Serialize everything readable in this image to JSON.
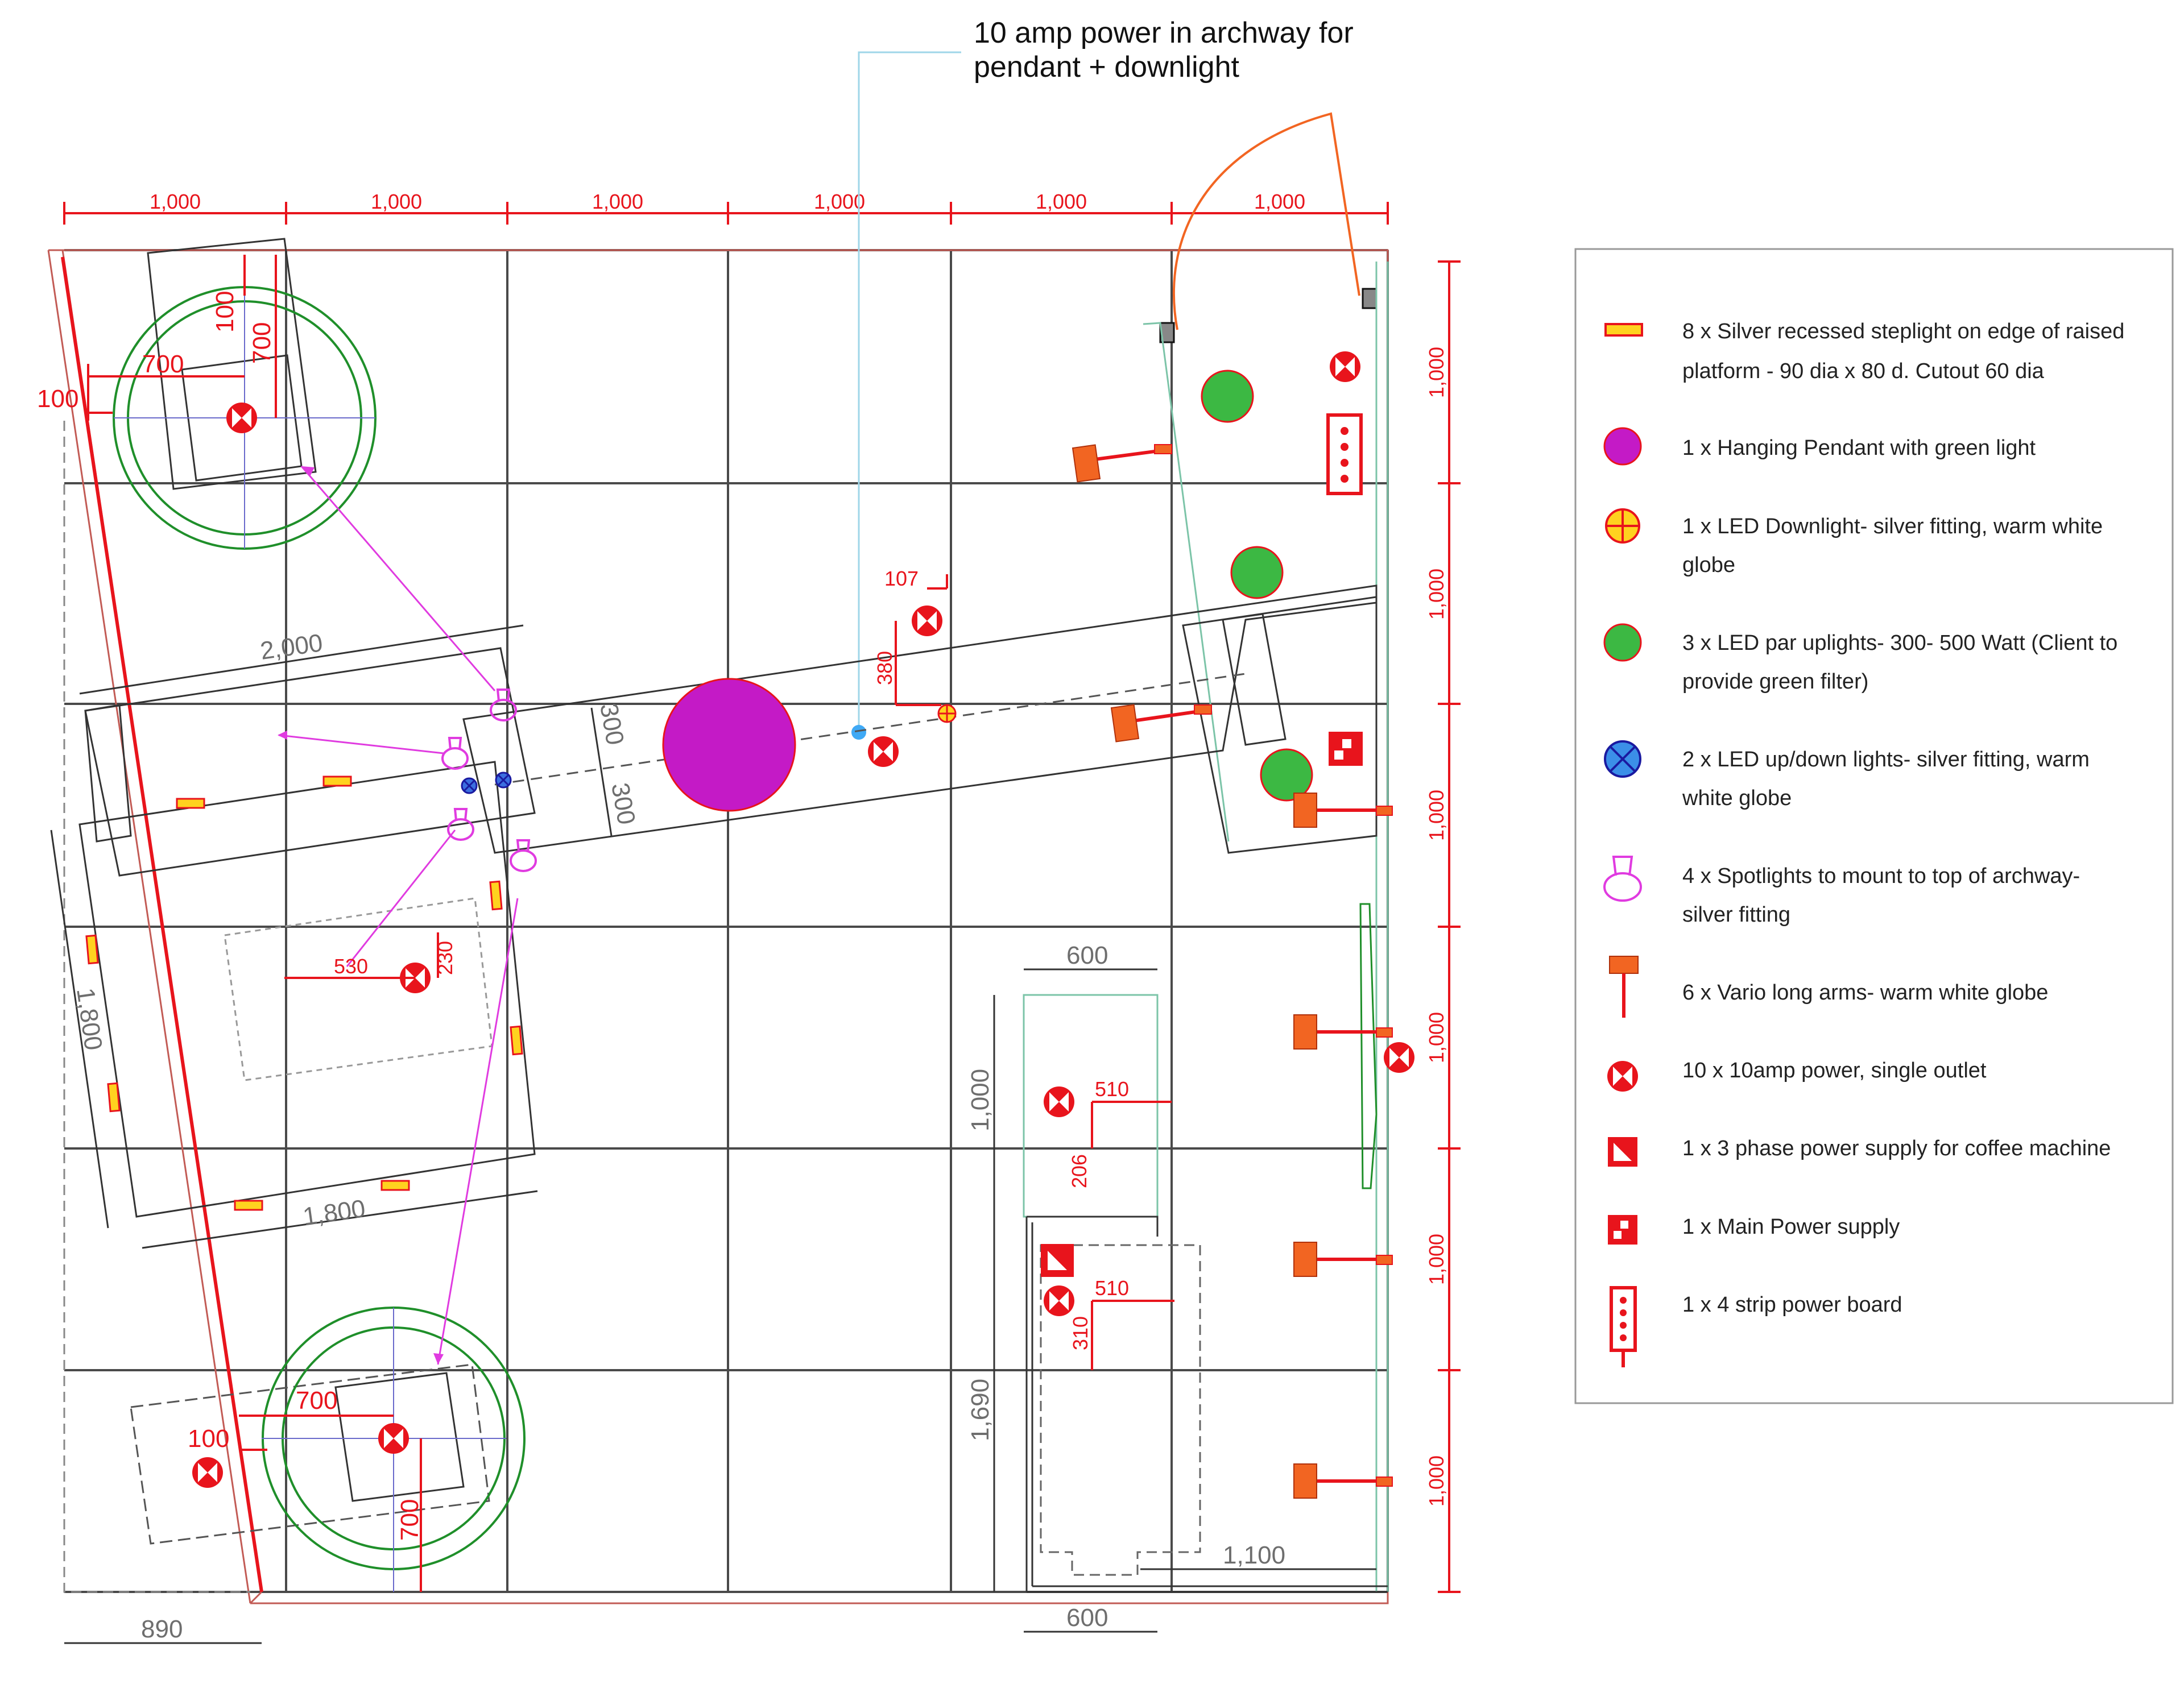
{
  "note": {
    "line1": "10 amp power in archway for",
    "line2": "pendant + downlight"
  },
  "dimensions": {
    "top": [
      "1,000",
      "1,000",
      "1,000",
      "1,000",
      "1,000",
      "1,000"
    ],
    "right": [
      "1,000",
      "1,000",
      "1,000",
      "1,000",
      "1,000",
      "1,000"
    ],
    "plinth_top": {
      "offset": "100",
      "width": "700",
      "side": "100",
      "depth": "700"
    },
    "plinth_bottom": {
      "width": "700",
      "side": "100",
      "depth": "700"
    },
    "platform_length": "2,000",
    "platform_width": "1,800",
    "platform_length_bottom": "1,800",
    "arch_width_a": "300",
    "arch_width_b": "300",
    "power_107": "107",
    "power_380": "380",
    "power_530": "530",
    "power_230": "230",
    "bench_top": "600",
    "bench_depth": "1,000",
    "bench_510_a": "510",
    "bench_206": "206",
    "bench_510_b": "510",
    "bench_310": "310",
    "bench_1690": "1,690",
    "bench_1100": "1,100",
    "bench_bottom": "600",
    "bottom_left": "890"
  },
  "legend": [
    {
      "icon": "steplight-icon",
      "line1": "8 x Silver recessed steplight on edge of raised",
      "line2": "platform - 90 dia x 80 d. Cutout 60 dia"
    },
    {
      "icon": "pendant-icon",
      "line1": "1 x Hanging Pendant with green light",
      "line2": ""
    },
    {
      "icon": "downlight-icon",
      "line1": "1 x LED Downlight- silver fitting, warm white",
      "line2": "globe"
    },
    {
      "icon": "par-uplight-icon",
      "line1": "3 x LED par uplights- 300- 500 Watt (Client to",
      "line2": "provide green filter)"
    },
    {
      "icon": "up-down-light-icon",
      "line1": "2 x LED up/down lights- silver fitting, warm",
      "line2": "white globe"
    },
    {
      "icon": "spotlight-icon",
      "line1": "4 x Spotlights to mount to top of archway-",
      "line2": "silver fitting"
    },
    {
      "icon": "vario-arm-icon",
      "line1": "6 x Vario long arms- warm white globe",
      "line2": ""
    },
    {
      "icon": "power-outlet-icon",
      "line1": "10 x 10amp power, single outlet",
      "line2": ""
    },
    {
      "icon": "three-phase-icon",
      "line1": "1 x 3 phase power supply for coffee machine",
      "line2": ""
    },
    {
      "icon": "main-power-icon",
      "line1": "1 x Main Power supply",
      "line2": ""
    },
    {
      "icon": "power-board-icon",
      "line1": "1 x 4 strip power board",
      "line2": ""
    }
  ],
  "colors": {
    "red": "#e8141c",
    "grid": "#4a4a4a",
    "green_ring": "#1f8f2a",
    "uplight": "#3cb843",
    "pendant": "#c41ac6",
    "spot": "#e03be0",
    "lightblue": "#9fd6e8",
    "orange": "#f26522"
  }
}
